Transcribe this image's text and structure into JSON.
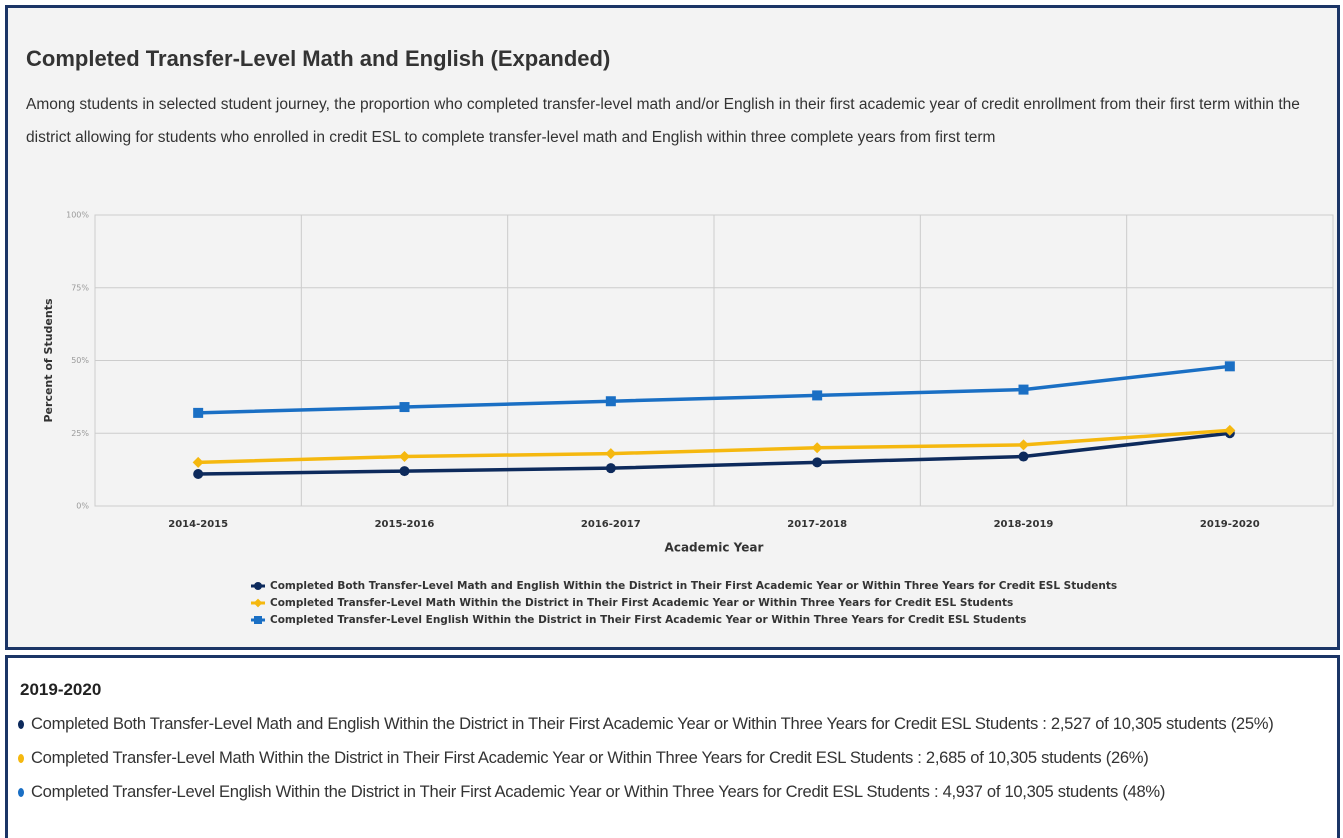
{
  "chart_data": {
    "type": "line",
    "title": "Completed Transfer-Level Math and English (Expanded)",
    "subtitle": "Among students in selected student journey, the proportion who completed transfer-level math and/or English in their first academic year of credit enrollment from their first term within the district allowing for students who enrolled in credit ESL to complete transfer-level math and English within three complete years from first term",
    "x_label": "Academic Year",
    "y_label": "Percent of Students",
    "categories": [
      "2014-2015",
      "2015-2016",
      "2016-2017",
      "2017-2018",
      "2018-2019",
      "2019-2020"
    ],
    "series": [
      {
        "name": "Completed Both Transfer-Level Math and English Within the District in Their First Academic Year or Within Three Years for Credit ESL Students",
        "color": "#0d2a5c",
        "marker": "circle",
        "values": [
          11,
          12,
          13,
          15,
          17,
          25
        ]
      },
      {
        "name": "Completed Transfer-Level Math Within the District in Their First Academic Year or Within Three Years for Credit ESL Students",
        "color": "#f5b80f",
        "marker": "diamond",
        "values": [
          15,
          17,
          18,
          20,
          21,
          26
        ]
      },
      {
        "name": "Completed Transfer-Level English Within the District in Their First Academic Year or Within Three Years for Credit ESL Students",
        "color": "#1a6fc4",
        "marker": "square",
        "values": [
          32,
          34,
          36,
          38,
          40,
          48
        ]
      }
    ],
    "ylim": [
      0,
      100
    ],
    "yticks": [
      {
        "value": 0,
        "label": "0%"
      },
      {
        "value": 25,
        "label": "25%"
      },
      {
        "value": 50,
        "label": "50%"
      },
      {
        "value": 75,
        "label": "75%"
      },
      {
        "value": 100,
        "label": "100%"
      }
    ],
    "grid": true
  },
  "tooltip": {
    "title": "2019-2020",
    "items": [
      "Completed Both Transfer-Level Math and English Within the District in Their First Academic Year or Within Three Years for Credit ESL Students : 2,527 of 10,305 students (25%)",
      "Completed Transfer-Level Math Within the District in Their First Academic Year or Within Three Years for Credit ESL Students : 2,685 of 10,305 students (26%)",
      "Completed Transfer-Level English Within the District in Their First Academic Year or Within Three Years for Credit ESL Students : 4,937 of 10,305 students (48%)"
    ]
  }
}
